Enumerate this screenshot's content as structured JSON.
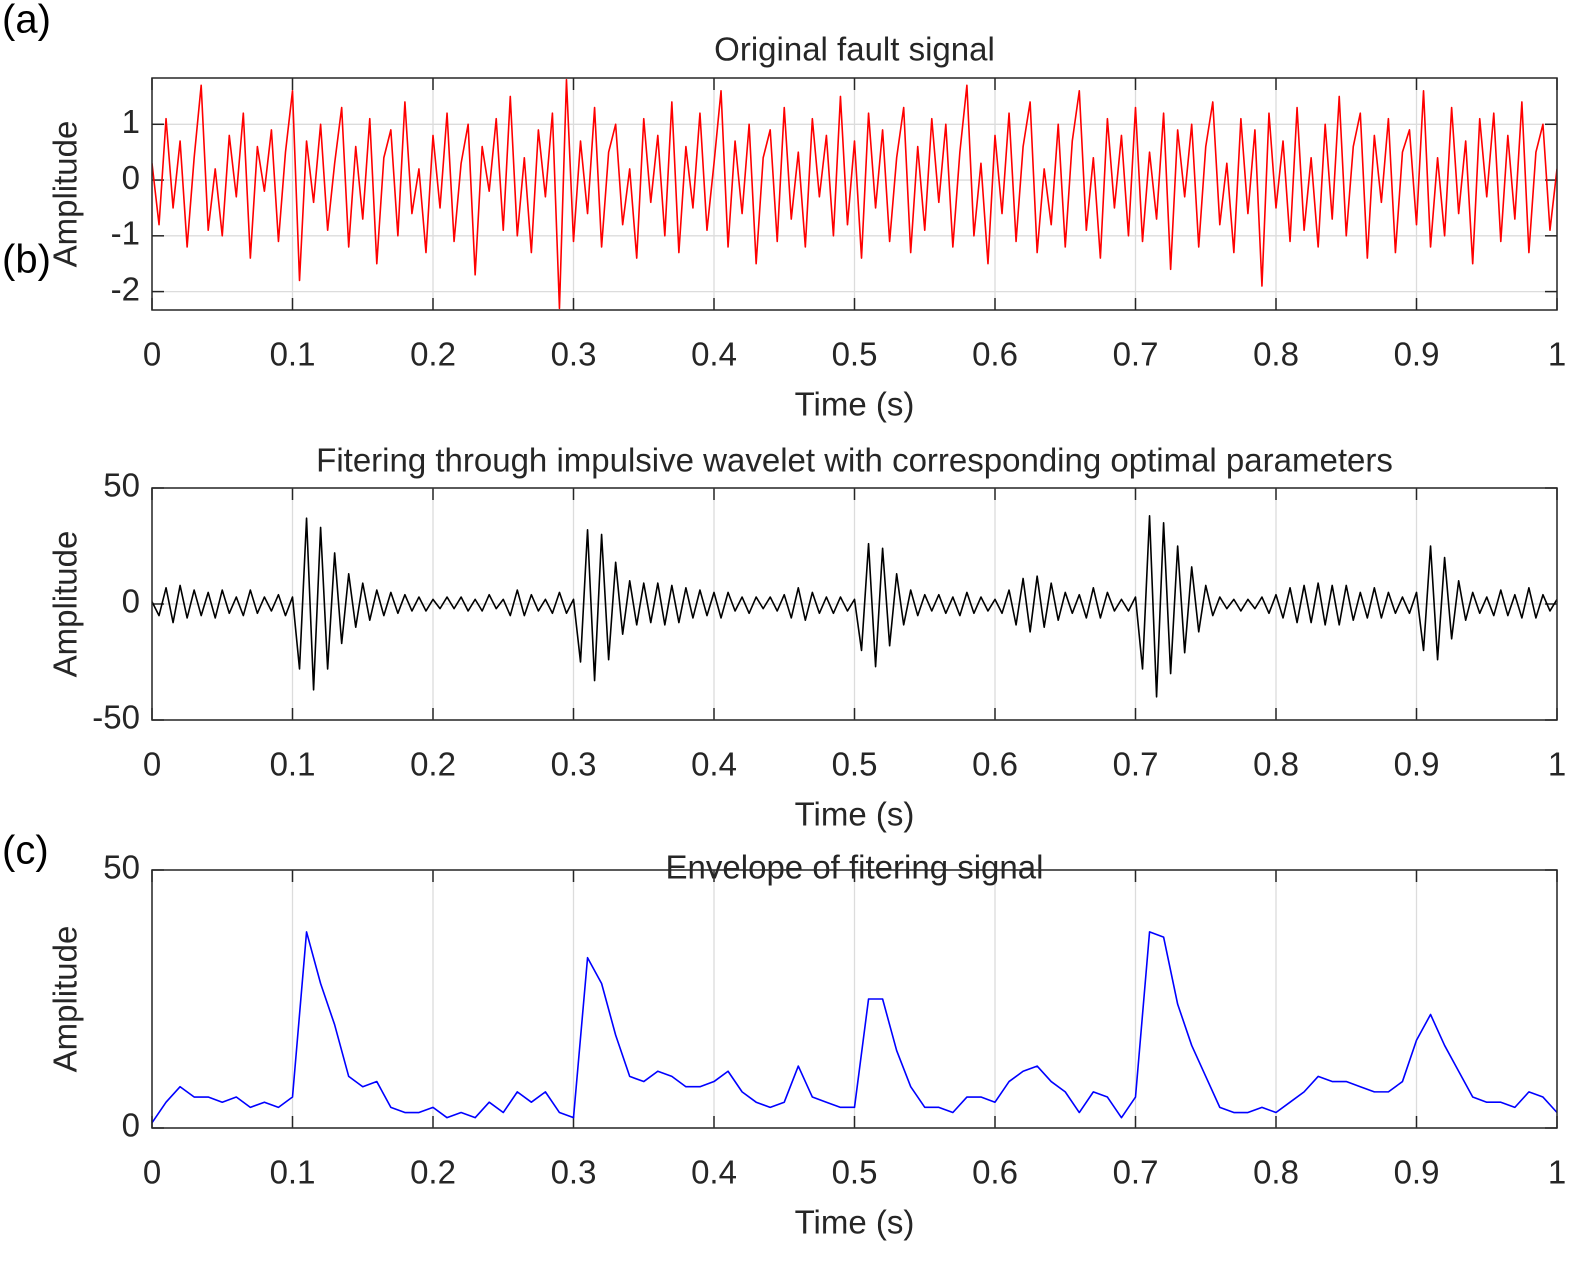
{
  "chart_data": [
    {
      "type": "line",
      "panel_label": "(a)",
      "title": "Original fault signal",
      "xlabel": "Time (s)",
      "ylabel": "Amplitude",
      "xlim": [
        0,
        1
      ],
      "xticks": [
        0,
        0.1,
        0.2,
        0.3,
        0.4,
        0.5,
        0.6,
        0.7,
        0.8,
        0.9,
        1
      ],
      "ylim": [
        -2.33,
        1.83
      ],
      "yticks": [
        -2,
        -1,
        0,
        1
      ],
      "grid": true,
      "color": "#ff0000",
      "x": [
        0,
        0.005,
        0.01,
        0.015,
        0.02,
        0.025,
        0.03,
        0.035,
        0.04,
        0.045,
        0.05,
        0.055,
        0.06,
        0.065,
        0.07,
        0.075,
        0.08,
        0.085,
        0.09,
        0.095,
        0.1,
        0.105,
        0.11,
        0.115,
        0.12,
        0.125,
        0.13,
        0.135,
        0.14,
        0.145,
        0.15,
        0.155,
        0.16,
        0.165,
        0.17,
        0.175,
        0.18,
        0.185,
        0.19,
        0.195,
        0.2,
        0.205,
        0.21,
        0.215,
        0.22,
        0.225,
        0.23,
        0.235,
        0.24,
        0.245,
        0.25,
        0.255,
        0.26,
        0.265,
        0.27,
        0.275,
        0.28,
        0.285,
        0.29,
        0.295,
        0.3,
        0.305,
        0.31,
        0.315,
        0.32,
        0.325,
        0.33,
        0.335,
        0.34,
        0.345,
        0.35,
        0.355,
        0.36,
        0.365,
        0.37,
        0.375,
        0.38,
        0.385,
        0.39,
        0.395,
        0.4,
        0.405,
        0.41,
        0.415,
        0.42,
        0.425,
        0.43,
        0.435,
        0.44,
        0.445,
        0.45,
        0.455,
        0.46,
        0.465,
        0.47,
        0.475,
        0.48,
        0.485,
        0.49,
        0.495,
        0.5,
        0.505,
        0.51,
        0.515,
        0.52,
        0.525,
        0.53,
        0.535,
        0.54,
        0.545,
        0.55,
        0.555,
        0.56,
        0.565,
        0.57,
        0.575,
        0.58,
        0.585,
        0.59,
        0.595,
        0.6,
        0.605,
        0.61,
        0.615,
        0.62,
        0.625,
        0.63,
        0.635,
        0.64,
        0.645,
        0.65,
        0.655,
        0.66,
        0.665,
        0.67,
        0.675,
        0.68,
        0.685,
        0.69,
        0.695,
        0.7,
        0.705,
        0.71,
        0.715,
        0.72,
        0.725,
        0.73,
        0.735,
        0.74,
        0.745,
        0.75,
        0.755,
        0.76,
        0.765,
        0.77,
        0.775,
        0.78,
        0.785,
        0.79,
        0.795,
        0.8,
        0.805,
        0.81,
        0.815,
        0.82,
        0.825,
        0.83,
        0.835,
        0.84,
        0.845,
        0.85,
        0.855,
        0.86,
        0.865,
        0.87,
        0.875,
        0.88,
        0.885,
        0.89,
        0.895,
        0.9,
        0.905,
        0.91,
        0.915,
        0.92,
        0.925,
        0.93,
        0.935,
        0.94,
        0.945,
        0.95,
        0.955,
        0.96,
        0.965,
        0.97,
        0.975,
        0.98,
        0.985,
        0.99,
        0.995,
        1
      ],
      "values": [
        0.3,
        -0.8,
        1.1,
        -0.5,
        0.7,
        -1.2,
        0.4,
        1.7,
        -0.9,
        0.2,
        -1.0,
        0.8,
        -0.3,
        1.2,
        -1.4,
        0.6,
        -0.2,
        0.9,
        -1.1,
        0.5,
        1.6,
        -1.8,
        0.7,
        -0.4,
        1.0,
        -0.9,
        0.3,
        1.3,
        -1.2,
        0.6,
        -0.7,
        1.1,
        -1.5,
        0.4,
        0.9,
        -1.0,
        1.4,
        -0.6,
        0.2,
        -1.3,
        0.8,
        -0.5,
        1.2,
        -1.1,
        0.3,
        1.0,
        -1.7,
        0.6,
        -0.2,
        1.1,
        -0.9,
        1.5,
        -1.0,
        0.4,
        -1.3,
        0.9,
        -0.3,
        1.2,
        -2.3,
        1.8,
        -1.1,
        0.7,
        -0.6,
        1.3,
        -1.2,
        0.5,
        1.0,
        -0.8,
        0.2,
        -1.4,
        1.1,
        -0.4,
        0.8,
        -1.0,
        1.4,
        -1.3,
        0.6,
        -0.5,
        1.2,
        -0.9,
        0.3,
        1.6,
        -1.2,
        0.7,
        -0.6,
        1.0,
        -1.5,
        0.4,
        0.9,
        -1.1,
        1.3,
        -0.7,
        0.5,
        -1.2,
        1.1,
        -0.3,
        0.8,
        -1.0,
        1.5,
        -0.8,
        0.7,
        -1.4,
        1.2,
        -0.5,
        0.9,
        -1.1,
        0.4,
        1.3,
        -1.3,
        0.6,
        -0.9,
        1.1,
        -0.4,
        1.0,
        -1.2,
        0.5,
        1.7,
        -1.0,
        0.3,
        -1.5,
        0.8,
        -0.6,
        1.2,
        -1.1,
        0.6,
        1.4,
        -1.3,
        0.2,
        -0.8,
        1.0,
        -1.2,
        0.7,
        1.6,
        -0.9,
        0.4,
        -1.4,
        1.1,
        -0.5,
        0.8,
        -1.0,
        1.3,
        -1.1,
        0.5,
        -0.7,
        1.2,
        -1.6,
        0.9,
        -0.3,
        1.0,
        -1.2,
        0.6,
        1.4,
        -0.8,
        0.3,
        -1.3,
        1.1,
        -0.6,
        0.9,
        -1.9,
        1.2,
        -0.5,
        0.7,
        -1.1,
        1.3,
        -0.9,
        0.4,
        -1.2,
        1.0,
        -0.7,
        1.5,
        -1.0,
        0.6,
        1.2,
        -1.4,
        0.8,
        -0.4,
        1.1,
        -1.3,
        0.5,
        0.9,
        -0.8,
        1.6,
        -1.2,
        0.4,
        -1.0,
        1.3,
        -0.6,
        0.7,
        -1.5,
        1.1,
        -0.3,
        1.2,
        -1.1,
        0.8,
        -0.7,
        1.4,
        -1.3,
        0.5,
        1.0,
        -0.9,
        0.2
      ]
    },
    {
      "type": "line",
      "panel_label": "(b)",
      "title": "Fitering through impulsive wavelet with corresponding optimal parameters",
      "xlabel": "Time (s)",
      "ylabel": "Amplitude",
      "xlim": [
        0,
        1
      ],
      "xticks": [
        0,
        0.1,
        0.2,
        0.3,
        0.4,
        0.5,
        0.6,
        0.7,
        0.8,
        0.9,
        1
      ],
      "ylim": [
        -50,
        50
      ],
      "yticks": [
        -50,
        0,
        50
      ],
      "grid": true,
      "color": "#000000",
      "x": [
        0,
        0.005,
        0.01,
        0.015,
        0.02,
        0.025,
        0.03,
        0.035,
        0.04,
        0.045,
        0.05,
        0.055,
        0.06,
        0.065,
        0.07,
        0.075,
        0.08,
        0.085,
        0.09,
        0.095,
        0.1,
        0.105,
        0.11,
        0.115,
        0.12,
        0.125,
        0.13,
        0.135,
        0.14,
        0.145,
        0.15,
        0.155,
        0.16,
        0.165,
        0.17,
        0.175,
        0.18,
        0.185,
        0.19,
        0.195,
        0.2,
        0.205,
        0.21,
        0.215,
        0.22,
        0.225,
        0.23,
        0.235,
        0.24,
        0.245,
        0.25,
        0.255,
        0.26,
        0.265,
        0.27,
        0.275,
        0.28,
        0.285,
        0.29,
        0.295,
        0.3,
        0.305,
        0.31,
        0.315,
        0.32,
        0.325,
        0.33,
        0.335,
        0.34,
        0.345,
        0.35,
        0.355,
        0.36,
        0.365,
        0.37,
        0.375,
        0.38,
        0.385,
        0.39,
        0.395,
        0.4,
        0.405,
        0.41,
        0.415,
        0.42,
        0.425,
        0.43,
        0.435,
        0.44,
        0.445,
        0.45,
        0.455,
        0.46,
        0.465,
        0.47,
        0.475,
        0.48,
        0.485,
        0.49,
        0.495,
        0.5,
        0.505,
        0.51,
        0.515,
        0.52,
        0.525,
        0.53,
        0.535,
        0.54,
        0.545,
        0.55,
        0.555,
        0.56,
        0.565,
        0.57,
        0.575,
        0.58,
        0.585,
        0.59,
        0.595,
        0.6,
        0.605,
        0.61,
        0.615,
        0.62,
        0.625,
        0.63,
        0.635,
        0.64,
        0.645,
        0.65,
        0.655,
        0.66,
        0.665,
        0.67,
        0.675,
        0.68,
        0.685,
        0.69,
        0.695,
        0.7,
        0.705,
        0.71,
        0.715,
        0.72,
        0.725,
        0.73,
        0.735,
        0.74,
        0.745,
        0.75,
        0.755,
        0.76,
        0.765,
        0.77,
        0.775,
        0.78,
        0.785,
        0.79,
        0.795,
        0.8,
        0.805,
        0.81,
        0.815,
        0.82,
        0.825,
        0.83,
        0.835,
        0.84,
        0.845,
        0.85,
        0.855,
        0.86,
        0.865,
        0.87,
        0.875,
        0.88,
        0.885,
        0.89,
        0.895,
        0.9,
        0.905,
        0.91,
        0.915,
        0.92,
        0.925,
        0.93,
        0.935,
        0.94,
        0.945,
        0.95,
        0.955,
        0.96,
        0.965,
        0.97,
        0.975,
        0.98,
        0.985,
        0.99,
        0.995,
        1
      ],
      "values": [
        1,
        -5,
        7,
        -8,
        8,
        -6,
        6,
        -5,
        5,
        -6,
        6,
        -4,
        3,
        -5,
        6,
        -4,
        3,
        -3,
        4,
        -5,
        3,
        -28,
        37,
        -37,
        33,
        -28,
        22,
        -17,
        13,
        -10,
        9,
        -7,
        6,
        -5,
        5,
        -4,
        4,
        -3,
        3,
        -3,
        2,
        -2,
        3,
        -2,
        3,
        -3,
        2,
        -3,
        4,
        -2,
        2,
        -5,
        6,
        -5,
        4,
        -3,
        2,
        -4,
        5,
        -4,
        2,
        -25,
        32,
        -33,
        30,
        -24,
        18,
        -13,
        10,
        -9,
        9,
        -8,
        9,
        -9,
        8,
        -8,
        7,
        -6,
        6,
        -5,
        5,
        -6,
        5,
        -3,
        3,
        -4,
        3,
        -2,
        3,
        -3,
        4,
        -6,
        7,
        -7,
        5,
        -4,
        3,
        -4,
        3,
        -3,
        2,
        -20,
        26,
        -27,
        24,
        -18,
        13,
        -9,
        6,
        -5,
        4,
        -3,
        4,
        -4,
        3,
        -5,
        5,
        -4,
        3,
        -3,
        2,
        -4,
        6,
        -9,
        11,
        -12,
        12,
        -10,
        9,
        -7,
        5,
        -4,
        4,
        -6,
        7,
        -6,
        5,
        -3,
        2,
        -3,
        3,
        -28,
        38,
        -40,
        35,
        -30,
        25,
        -21,
        16,
        -12,
        8,
        -5,
        3,
        -2,
        2,
        -3,
        2,
        -2,
        3,
        -4,
        4,
        -6,
        7,
        -8,
        8,
        -8,
        9,
        -9,
        8,
        -9,
        8,
        -7,
        5,
        -6,
        7,
        -6,
        5,
        -4,
        3,
        -4,
        5,
        -20,
        25,
        -24,
        20,
        -15,
        10,
        -7,
        5,
        -4,
        3,
        -5,
        6,
        -5,
        4,
        -6,
        7,
        -6,
        4,
        -3,
        2
      ]
    },
    {
      "type": "line",
      "panel_label": "(c)",
      "title": "Envelope of fitering signal",
      "xlabel": "Time (s)",
      "ylabel": "Amplitude",
      "xlim": [
        0,
        1
      ],
      "xticks": [
        0,
        0.1,
        0.2,
        0.3,
        0.4,
        0.5,
        0.6,
        0.7,
        0.8,
        0.9,
        1
      ],
      "ylim": [
        0,
        50
      ],
      "yticks": [
        0,
        50
      ],
      "grid": true,
      "color": "#0000ff",
      "x": [
        0,
        0.01,
        0.02,
        0.03,
        0.04,
        0.05,
        0.06,
        0.07,
        0.08,
        0.09,
        0.1,
        0.11,
        0.12,
        0.13,
        0.14,
        0.15,
        0.16,
        0.17,
        0.18,
        0.19,
        0.2,
        0.21,
        0.22,
        0.23,
        0.24,
        0.25,
        0.26,
        0.27,
        0.28,
        0.29,
        0.3,
        0.31,
        0.32,
        0.33,
        0.34,
        0.35,
        0.36,
        0.37,
        0.38,
        0.39,
        0.4,
        0.41,
        0.42,
        0.43,
        0.44,
        0.45,
        0.46,
        0.47,
        0.48,
        0.49,
        0.5,
        0.51,
        0.52,
        0.53,
        0.54,
        0.55,
        0.56,
        0.57,
        0.58,
        0.59,
        0.6,
        0.61,
        0.62,
        0.63,
        0.64,
        0.65,
        0.66,
        0.67,
        0.68,
        0.69,
        0.7,
        0.71,
        0.72,
        0.73,
        0.74,
        0.75,
        0.76,
        0.77,
        0.78,
        0.79,
        0.8,
        0.81,
        0.82,
        0.83,
        0.84,
        0.85,
        0.86,
        0.87,
        0.88,
        0.89,
        0.9,
        0.91,
        0.92,
        0.93,
        0.94,
        0.95,
        0.96,
        0.97,
        0.98,
        0.99,
        1
      ],
      "values": [
        1,
        5,
        8,
        6,
        6,
        5,
        6,
        4,
        5,
        4,
        6,
        38,
        28,
        20,
        10,
        8,
        9,
        4,
        3,
        3,
        4,
        2,
        3,
        2,
        5,
        3,
        7,
        5,
        7,
        3,
        2,
        33,
        28,
        18,
        10,
        9,
        11,
        10,
        8,
        8,
        9,
        11,
        7,
        5,
        4,
        5,
        12,
        6,
        5,
        4,
        4,
        25,
        25,
        15,
        8,
        4,
        4,
        3,
        6,
        6,
        5,
        9,
        11,
        12,
        9,
        7,
        3,
        7,
        6,
        2,
        6,
        38,
        37,
        24,
        16,
        10,
        4,
        3,
        3,
        4,
        3,
        5,
        7,
        10,
        9,
        9,
        8,
        7,
        7,
        9,
        17,
        22,
        16,
        11,
        6,
        5,
        5,
        4,
        7,
        6,
        3
      ]
    }
  ]
}
